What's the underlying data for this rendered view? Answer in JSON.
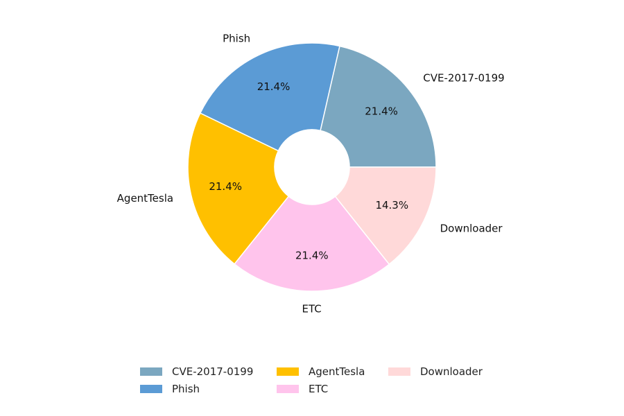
{
  "chart_data": {
    "type": "pie",
    "donut": true,
    "categories": [
      "CVE-2017-0199",
      "Phish",
      "AgentTesla",
      "ETC",
      "Downloader"
    ],
    "values": [
      21.4,
      21.4,
      21.4,
      21.4,
      14.3
    ],
    "labels": [
      "21.4%",
      "21.4%",
      "21.4%",
      "21.4%",
      "14.3%"
    ],
    "colors": [
      "#7ba7c0",
      "#5b9bd5",
      "#ffc000",
      "#ffc4ec",
      "#ffd9d9"
    ],
    "start_angle_deg": 0,
    "direction": "counterclockwise",
    "title": "",
    "legend_position": "bottom"
  }
}
